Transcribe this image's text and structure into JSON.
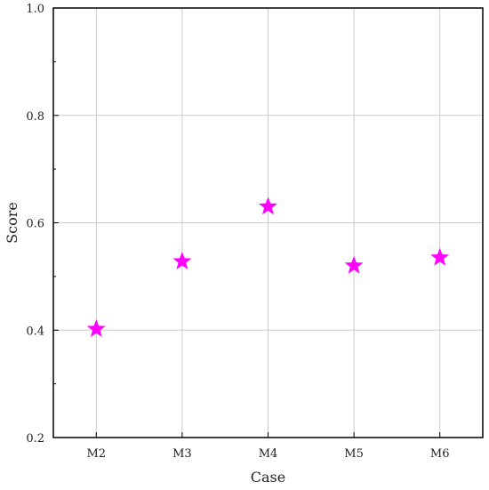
{
  "chart_data": {
    "type": "scatter",
    "categories": [
      "M2",
      "M3",
      "M4",
      "M5",
      "M6"
    ],
    "values": [
      0.402,
      0.528,
      0.63,
      0.52,
      0.535
    ],
    "xlabel": "Case",
    "ylabel": "Score",
    "ylim": [
      0.2,
      1.0
    ],
    "yticks": [
      "0.2",
      "0.4",
      "0.6",
      "0.8",
      "1.0"
    ],
    "grid": true,
    "marker": "star",
    "marker_color": "#ff00ff"
  }
}
